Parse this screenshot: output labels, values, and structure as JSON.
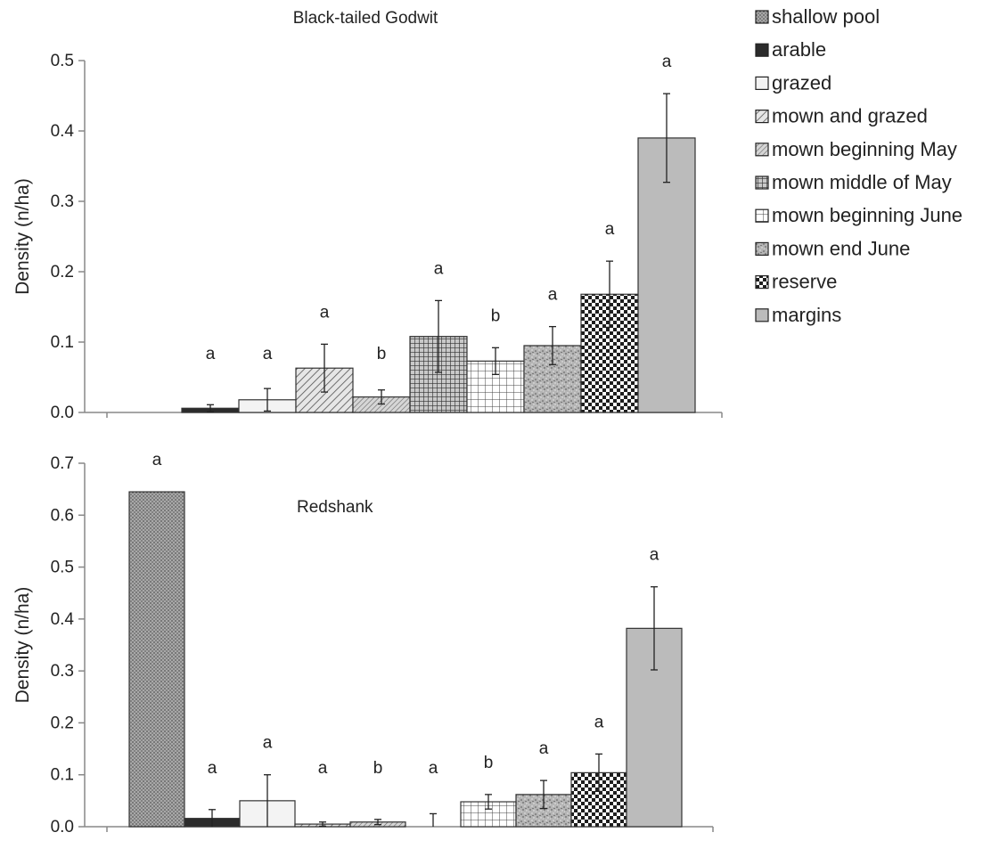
{
  "legend": {
    "position": "right",
    "items": [
      {
        "label": "shallow pool",
        "pattern": "dots-dense"
      },
      {
        "label": "arable",
        "pattern": "solid-dark"
      },
      {
        "label": "grazed",
        "pattern": "solid-white"
      },
      {
        "label": "mown and grazed",
        "pattern": "diag-lines"
      },
      {
        "label": "mown beginning May",
        "pattern": "diag-fine"
      },
      {
        "label": "mown middle of May",
        "pattern": "grid-dense"
      },
      {
        "label": "mown beginning June",
        "pattern": "grid-sparse"
      },
      {
        "label": "mown end June",
        "pattern": "speckle"
      },
      {
        "label": "reserve",
        "pattern": "checker"
      },
      {
        "label": "margins",
        "pattern": "solid-gray"
      }
    ]
  },
  "colors": {
    "axis": "#888888",
    "bar_stroke": "#333333",
    "shallow_pool": "#9a9a9a",
    "arable": "#2b2b2b",
    "grazed": "#f2f2f2",
    "margins": "#b8b8b8"
  },
  "chart_data": [
    {
      "type": "bar",
      "title": "Black-tailed Godwit",
      "title_placement": "top-center",
      "ylabel": "Density  (n/ha)",
      "xlabel": "",
      "ylim": [
        0,
        0.5
      ],
      "yticks": [
        "0.0",
        "0.1",
        "0.2",
        "0.3",
        "0.4",
        "0.5"
      ],
      "grid": false,
      "categories": [
        "shallow pool",
        "arable",
        "grazed",
        "mown and grazed",
        "mown beginning May",
        "mown middle of May",
        "mown beginning June",
        "mown end June",
        "reserve",
        "margins"
      ],
      "values": [
        0,
        0.006,
        0.018,
        0.063,
        0.022,
        0.108,
        0.073,
        0.095,
        0.168,
        0.39
      ],
      "error": [
        0,
        0.005,
        0.016,
        0.034,
        0.01,
        0.051,
        0.019,
        0.027,
        0.047,
        0.063
      ],
      "significance": [
        "",
        "a",
        "a",
        "a",
        "b",
        "a",
        "b",
        "a",
        "a",
        "a"
      ]
    },
    {
      "type": "bar",
      "title": "Redshank",
      "title_placement": "inside-top-left",
      "ylabel": "Density  (n/ha)",
      "xlabel": "",
      "ylim": [
        0,
        0.7
      ],
      "yticks": [
        "0.0",
        "0.1",
        "0.2",
        "0.3",
        "0.4",
        "0.5",
        "0.6",
        "0.7"
      ],
      "grid": false,
      "categories": [
        "shallow pool",
        "arable",
        "grazed",
        "mown and grazed",
        "mown beginning May",
        "mown middle of May",
        "mown beginning June",
        "mown end June",
        "reserve",
        "margins"
      ],
      "values": [
        0.645,
        0.016,
        0.05,
        0.005,
        0.009,
        0,
        0.048,
        0.062,
        0.104,
        0.382
      ],
      "error": [
        0,
        0.017,
        0.05,
        0.004,
        0.005,
        0.025,
        0.014,
        0.027,
        0.036,
        0.08
      ],
      "significance": [
        "a",
        "a",
        "a",
        "a",
        "b",
        "a",
        "b",
        "a",
        "a",
        "a"
      ]
    }
  ]
}
